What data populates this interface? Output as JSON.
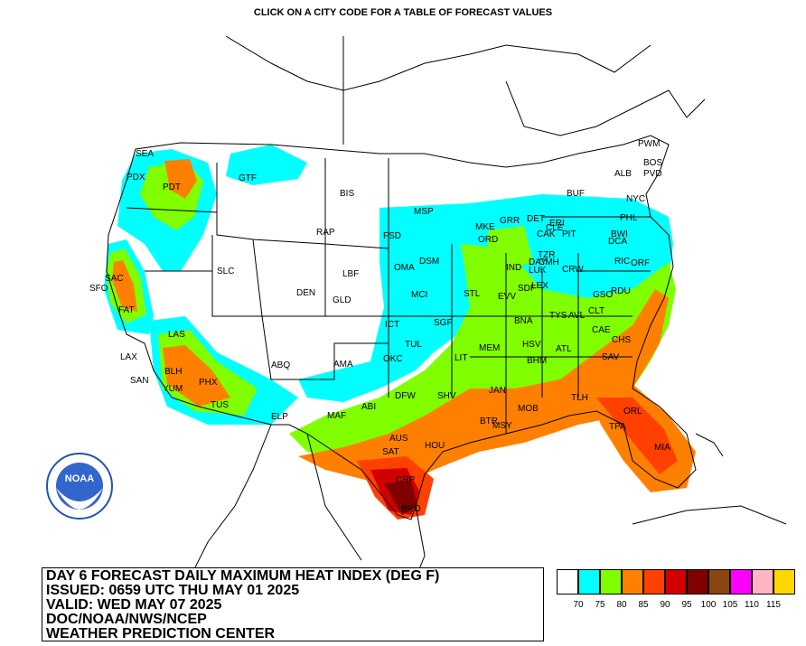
{
  "header": {
    "instruction": "CLICK ON A CITY CODE FOR A TABLE OF FORECAST VALUES"
  },
  "info": {
    "line1": "DAY 6 FORECAST DAILY MAXIMUM HEAT INDEX (DEG F)",
    "line2": "ISSUED: 0659 UTC THU MAY 01 2025",
    "line3": "VALID: WED MAY 07 2025",
    "line4": "DOC/NOAA/NWS/NCEP",
    "line5": "WEATHER PREDICTION CENTER"
  },
  "logo": {
    "text": "NOAA"
  },
  "legend": {
    "colors": [
      "#ffffff",
      "#00ffff",
      "#80ff00",
      "#ff8000",
      "#ff4000",
      "#d00000",
      "#800000",
      "#8b4513",
      "#ff00ff",
      "#ffb6c1",
      "#ffd700"
    ],
    "labels": [
      "70",
      "75",
      "80",
      "85",
      "90",
      "95",
      "100",
      "105",
      "110",
      "115"
    ]
  },
  "cities": [
    "SEA",
    "PDX",
    "PDT",
    "GTF",
    "BIS",
    "MSP",
    "RAP",
    "FSD",
    "SAC",
    "SFO",
    "SLC",
    "DEN",
    "LBF",
    "GLD",
    "OMA",
    "DSM",
    "MKE",
    "GRR",
    "DET",
    "ORD",
    "ALB",
    "PWM",
    "BOS",
    "PVD",
    "BUF",
    "NYC",
    "PHL",
    "BWI",
    "DCA",
    "ERI",
    "CLE",
    "CAK",
    "PIT",
    "RIC",
    "ORF",
    "MCI",
    "STL",
    "IND",
    "DAY",
    "LUK",
    "CMH",
    "EVV",
    "SDF",
    "LEX",
    "CRW",
    "TZR",
    "FAT",
    "LAS",
    "LAX",
    "SAN",
    "BLH",
    "PHX",
    "YUM",
    "TUS",
    "ELP",
    "ABQ",
    "AMA",
    "ABI",
    "MAF",
    "ICT",
    "TUL",
    "OKC",
    "SGF",
    "LIT",
    "MEM",
    "BNA",
    "TYS",
    "AVL",
    "CLT",
    "GSO",
    "RDU",
    "CAE",
    "CHS",
    "SAV",
    "ATL",
    "HSV",
    "BHM",
    "JAN",
    "DFW",
    "SHV",
    "BTR",
    "MSY",
    "MOB",
    "TLH",
    "ORL",
    "TPA",
    "MIA",
    "AUS",
    "SAT",
    "HOU",
    "CRP",
    "BRO"
  ]
}
